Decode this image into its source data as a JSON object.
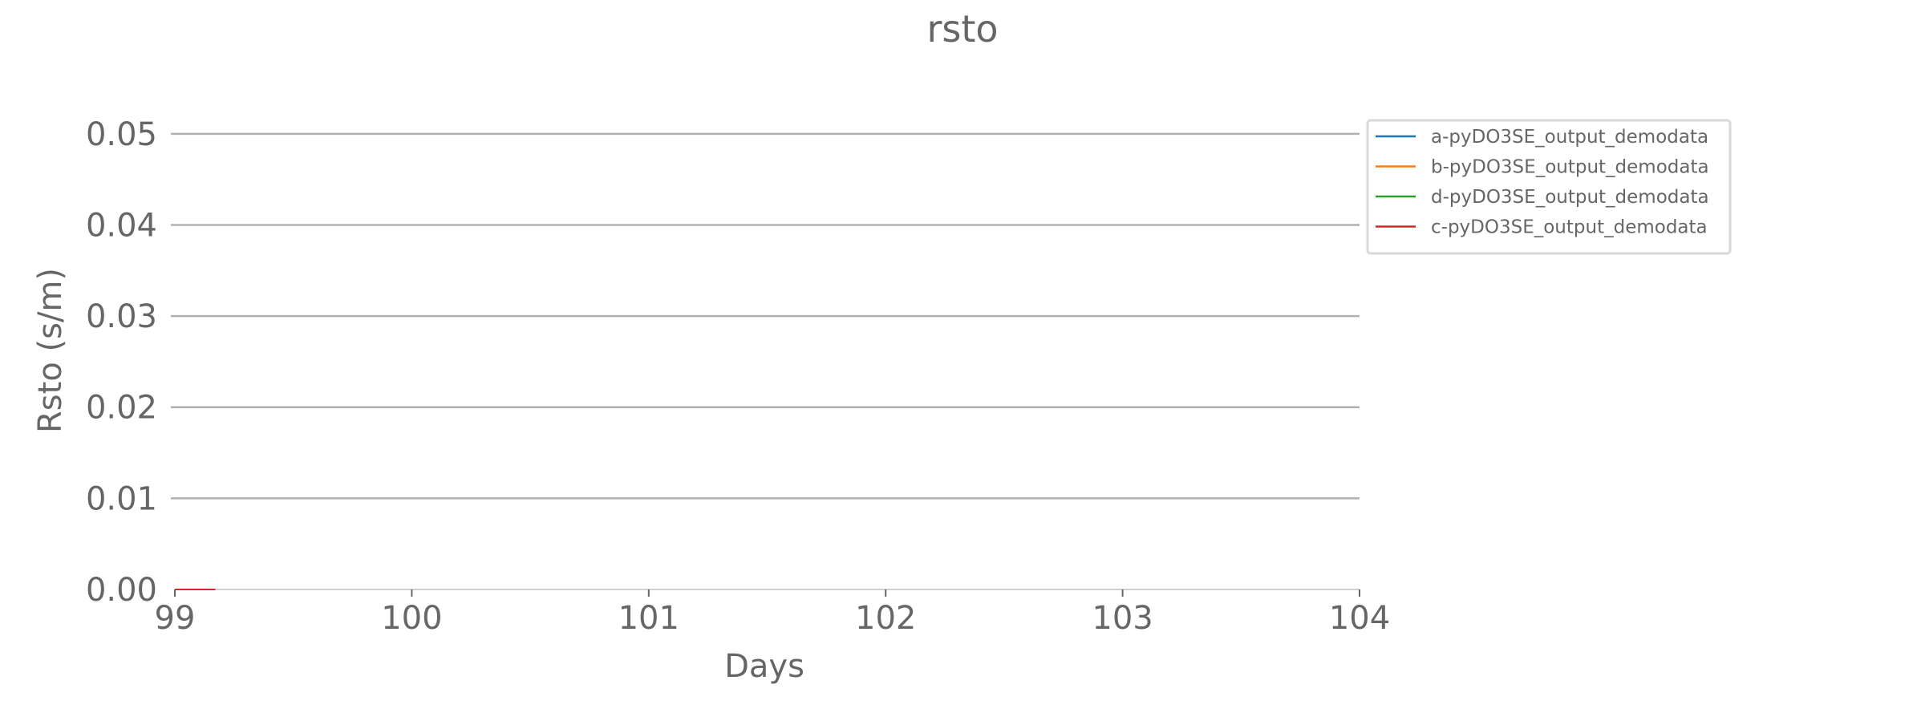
{
  "chart_data": {
    "type": "line",
    "title": "rsto",
    "xlabel": "Days",
    "ylabel": "Rsto (s/m)",
    "xlim": [
      99,
      104
    ],
    "ylim": [
      0,
      0.055
    ],
    "xticks": [
      99,
      100,
      101,
      102,
      103,
      104
    ],
    "xtick_labels": [
      "99",
      "100",
      "101",
      "102",
      "103",
      "104"
    ],
    "yticks": [
      0,
      0.01,
      0.02,
      0.03,
      0.04,
      0.05
    ],
    "ytick_labels": [
      "0.00",
      "0.01",
      "0.02",
      "0.03",
      "0.04",
      "0.05"
    ],
    "grid": "horizontal",
    "legend_position": "upper right, outside plot",
    "series": [
      {
        "name": "a-pyDO3SE_output_demodata",
        "color": "#1f77b4",
        "x": [
          99.0,
          99.17
        ],
        "y": [
          0,
          0
        ]
      },
      {
        "name": "b-pyDO3SE_output_demodata",
        "color": "#ff7f0e",
        "x": [
          99.0,
          99.17
        ],
        "y": [
          0,
          0
        ]
      },
      {
        "name": "d-pyDO3SE_output_demodata",
        "color": "#2ca02c",
        "x": [
          99.0,
          99.17
        ],
        "y": [
          0,
          0
        ]
      },
      {
        "name": "c-pyDO3SE_output_demodata",
        "color": "#d62728",
        "x": [
          99.0,
          99.17
        ],
        "y": [
          0,
          0
        ]
      }
    ],
    "colors": {
      "text": "#666666",
      "grid": "#b0b0b0",
      "axis": "#d0d0d0",
      "legend_border": "#d9d9d9"
    }
  }
}
